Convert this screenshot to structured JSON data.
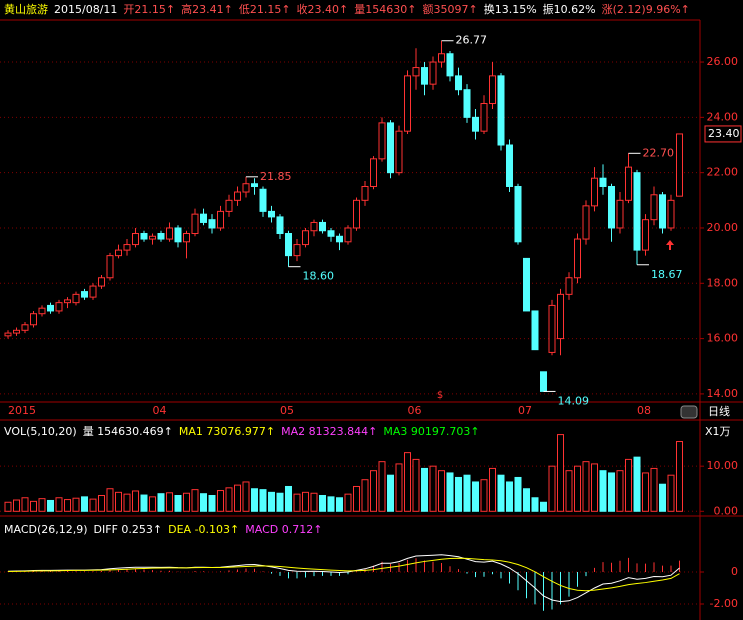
{
  "chart_data": {
    "type": "candlestick",
    "header": [
      {
        "text": "黄山旅游",
        "color": "#ffff00"
      },
      {
        "text": "2015/08/11",
        "color": "#ffffff"
      },
      {
        "text": "开21.15↑",
        "color": "#ff5050"
      },
      {
        "text": "高23.41↑",
        "color": "#ff5050"
      },
      {
        "text": "低21.15↑",
        "color": "#ff5050"
      },
      {
        "text": "收23.40↑",
        "color": "#ff5050"
      },
      {
        "text": "量154630↑",
        "color": "#ff5050"
      },
      {
        "text": "额35097↑",
        "color": "#ff5050"
      },
      {
        "text": "换13.15%",
        "color": "#ffffff"
      },
      {
        "text": "振10.62%",
        "color": "#ffffff"
      },
      {
        "text": "涨(2.12)9.96%↑",
        "color": "#ff5050"
      }
    ],
    "categories": [
      "2015",
      null,
      null,
      null,
      null,
      null,
      null,
      null,
      null,
      null,
      null,
      null,
      null,
      null,
      null,
      null,
      null,
      "04",
      null,
      null,
      null,
      null,
      null,
      null,
      null,
      null,
      null,
      null,
      null,
      null,
      null,
      null,
      "05",
      null,
      null,
      null,
      null,
      null,
      null,
      null,
      null,
      null,
      null,
      null,
      null,
      null,
      null,
      "06",
      null,
      null,
      null,
      null,
      null,
      null,
      null,
      null,
      null,
      null,
      null,
      null,
      "07",
      null,
      null,
      null,
      null,
      null,
      null,
      null,
      null,
      null,
      null,
      null,
      null,
      null,
      "08",
      null,
      null,
      null,
      null,
      null
    ],
    "ohlc": [
      [
        16.1,
        16.3,
        16.0,
        16.2
      ],
      [
        16.2,
        16.4,
        16.1,
        16.3
      ],
      [
        16.3,
        16.6,
        16.2,
        16.5
      ],
      [
        16.5,
        17.0,
        16.4,
        16.9
      ],
      [
        16.9,
        17.2,
        16.8,
        17.1
      ],
      [
        17.2,
        17.3,
        16.9,
        17.0
      ],
      [
        17.0,
        17.4,
        16.9,
        17.3
      ],
      [
        17.3,
        17.5,
        17.1,
        17.4
      ],
      [
        17.3,
        17.7,
        17.2,
        17.6
      ],
      [
        17.7,
        17.8,
        17.4,
        17.5
      ],
      [
        17.5,
        18.0,
        17.4,
        17.9
      ],
      [
        17.9,
        18.3,
        17.8,
        18.2
      ],
      [
        18.2,
        19.1,
        18.1,
        19.0
      ],
      [
        19.0,
        19.4,
        18.9,
        19.2
      ],
      [
        19.2,
        19.6,
        19.0,
        19.4
      ],
      [
        19.4,
        20.0,
        19.3,
        19.8
      ],
      [
        19.8,
        19.9,
        19.5,
        19.6
      ],
      [
        19.6,
        19.8,
        19.4,
        19.7
      ],
      [
        19.8,
        19.9,
        19.5,
        19.6
      ],
      [
        19.6,
        20.2,
        19.5,
        20.0
      ],
      [
        20.0,
        20.1,
        19.3,
        19.5
      ],
      [
        19.5,
        19.9,
        18.9,
        19.8
      ],
      [
        19.8,
        20.7,
        19.7,
        20.5
      ],
      [
        20.5,
        20.7,
        20.1,
        20.2
      ],
      [
        20.3,
        20.5,
        19.8,
        20.0
      ],
      [
        20.0,
        20.8,
        19.9,
        20.6
      ],
      [
        20.6,
        21.2,
        20.4,
        21.0
      ],
      [
        21.0,
        21.5,
        20.8,
        21.3
      ],
      [
        21.3,
        21.85,
        21.1,
        21.6
      ],
      [
        21.6,
        21.8,
        21.2,
        21.5
      ],
      [
        21.4,
        21.5,
        20.4,
        20.6
      ],
      [
        20.6,
        20.8,
        20.2,
        20.4
      ],
      [
        20.4,
        20.5,
        19.6,
        19.8
      ],
      [
        19.8,
        19.9,
        18.6,
        19.0
      ],
      [
        19.0,
        19.6,
        18.8,
        19.4
      ],
      [
        19.4,
        20.0,
        19.3,
        19.9
      ],
      [
        19.9,
        20.3,
        19.7,
        20.2
      ],
      [
        20.2,
        20.3,
        19.8,
        19.9
      ],
      [
        19.9,
        20.0,
        19.5,
        19.7
      ],
      [
        19.7,
        19.8,
        19.2,
        19.5
      ],
      [
        19.5,
        20.1,
        19.4,
        20.0
      ],
      [
        20.0,
        21.1,
        19.9,
        21.0
      ],
      [
        21.0,
        21.7,
        20.8,
        21.5
      ],
      [
        21.5,
        22.6,
        21.4,
        22.5
      ],
      [
        22.5,
        24.0,
        22.4,
        23.8
      ],
      [
        23.8,
        23.9,
        21.8,
        22.0
      ],
      [
        22.0,
        23.7,
        21.9,
        23.5
      ],
      [
        23.5,
        25.7,
        23.4,
        25.5
      ],
      [
        25.5,
        26.5,
        25.0,
        25.8
      ],
      [
        25.8,
        26.0,
        24.8,
        25.2
      ],
      [
        25.2,
        26.2,
        25.0,
        26.0
      ],
      [
        26.0,
        26.77,
        25.8,
        26.3
      ],
      [
        26.3,
        26.4,
        25.3,
        25.5
      ],
      [
        25.5,
        25.8,
        24.8,
        25.0
      ],
      [
        25.0,
        25.2,
        23.8,
        24.0
      ],
      [
        24.0,
        24.3,
        23.2,
        23.5
      ],
      [
        23.5,
        24.8,
        23.4,
        24.5
      ],
      [
        24.5,
        26.0,
        24.3,
        25.5
      ],
      [
        25.5,
        25.6,
        22.8,
        23.0
      ],
      [
        23.0,
        23.2,
        21.3,
        21.5
      ],
      [
        21.5,
        21.6,
        19.4,
        19.5
      ],
      [
        18.9,
        18.9,
        17.0,
        17.0
      ],
      [
        17.0,
        17.0,
        15.6,
        15.6
      ],
      [
        14.8,
        14.8,
        14.09,
        14.09
      ],
      [
        15.5,
        17.4,
        15.4,
        17.2
      ],
      [
        16.0,
        17.8,
        15.4,
        17.6
      ],
      [
        17.6,
        18.4,
        17.4,
        18.2
      ],
      [
        18.2,
        19.8,
        18.0,
        19.6
      ],
      [
        19.6,
        21.0,
        19.4,
        20.8
      ],
      [
        20.8,
        22.2,
        20.6,
        21.8
      ],
      [
        21.8,
        22.3,
        21.2,
        21.5
      ],
      [
        21.5,
        21.6,
        19.5,
        20.0
      ],
      [
        20.0,
        21.3,
        19.8,
        21.0
      ],
      [
        21.0,
        22.7,
        20.9,
        22.2
      ],
      [
        22.0,
        22.1,
        18.67,
        19.2
      ],
      [
        19.2,
        20.5,
        19.0,
        20.3
      ],
      [
        20.3,
        21.5,
        20.1,
        21.2
      ],
      [
        21.2,
        21.3,
        19.8,
        20.0
      ],
      [
        20.0,
        21.2,
        19.9,
        21.0
      ],
      [
        21.15,
        23.41,
        21.15,
        23.4
      ]
    ],
    "ylim": [
      13.78,
      27.52
    ],
    "yticks": [
      {
        "value": 14,
        "label": "14.00"
      },
      {
        "value": 16,
        "label": "16.00"
      },
      {
        "value": 18,
        "label": "18.00"
      },
      {
        "value": 20,
        "label": "20.00"
      },
      {
        "value": 22,
        "label": "22.00"
      },
      {
        "value": 24,
        "label": "24.00"
      },
      {
        "value": 26,
        "label": "26.00"
      }
    ],
    "annotations": [
      {
        "value": 26.77,
        "label": "26.77",
        "at": 51
      },
      {
        "value": 21.85,
        "label": "21.85",
        "at": 28
      },
      {
        "value": 18.6,
        "label": "18.60",
        "at": 33
      },
      {
        "value": 22.7,
        "label": "22.70",
        "at": 73
      },
      {
        "value": 18.67,
        "label": "18.67",
        "at": 74
      },
      {
        "value": 14.09,
        "label": "14.09",
        "at": 63
      }
    ],
    "last_price": {
      "value": 23.4,
      "label": "23.40"
    },
    "period": "日线",
    "up_color": "#ff3232",
    "down_color": "#54ffff",
    "grid": true,
    "volume": {
      "header": [
        {
          "text": "VOL(5,10,20)",
          "color": "#ffffff"
        },
        {
          "text": "量 154630.469↑",
          "color": "#ffffff"
        },
        {
          "text": "MA1 73076.977↑",
          "color": "#ffff00"
        },
        {
          "text": "MA2 81323.844↑",
          "color": "#ff40ff"
        },
        {
          "text": "MA3 90197.703↑",
          "color": "#00ff00"
        }
      ],
      "unit": "X1万",
      "values": [
        2.0,
        2.5,
        3.0,
        2.2,
        2.8,
        2.4,
        3.0,
        2.6,
        2.9,
        3.2,
        2.7,
        3.5,
        5.0,
        4.2,
        3.8,
        4.5,
        3.6,
        3.2,
        3.9,
        4.1,
        3.5,
        4.0,
        4.8,
        3.9,
        3.5,
        4.6,
        5.2,
        5.8,
        6.5,
        5.0,
        4.8,
        4.2,
        4.0,
        5.5,
        3.8,
        4.2,
        4.0,
        3.5,
        3.2,
        3.0,
        3.8,
        5.5,
        7.0,
        9.0,
        11.0,
        8.0,
        10.5,
        13.0,
        11.5,
        9.5,
        10.0,
        9.0,
        8.5,
        7.5,
        8.0,
        6.5,
        7.0,
        9.5,
        8.0,
        6.5,
        7.5,
        5.0,
        3.0,
        2.0,
        10.0,
        17.0,
        9.0,
        10.0,
        11.0,
        10.5,
        9.0,
        8.5,
        9.0,
        11.5,
        12.0,
        8.5,
        9.5,
        6.0,
        8.0,
        15.4630469
      ],
      "ylim": [
        -0.6,
        15.8
      ],
      "yticks": [
        {
          "value": 0,
          "label": "0.00"
        },
        {
          "value": 10,
          "label": "10.00"
        }
      ]
    },
    "macd": {
      "header": [
        {
          "text": "MACD(26,12,9)",
          "color": "#ffffff"
        },
        {
          "text": "DIFF 0.253↑",
          "color": "#ffffff"
        },
        {
          "text": "DEA -0.103↑",
          "color": "#ffff00"
        },
        {
          "text": "MACD 0.712↑",
          "color": "#ff40ff"
        }
      ],
      "diff_color": "#ffffff",
      "dea_color": "#ffff00",
      "diff": [
        0.05,
        0.06,
        0.07,
        0.09,
        0.1,
        0.1,
        0.11,
        0.12,
        0.12,
        0.12,
        0.13,
        0.15,
        0.2,
        0.24,
        0.27,
        0.3,
        0.3,
        0.3,
        0.29,
        0.3,
        0.27,
        0.26,
        0.3,
        0.3,
        0.28,
        0.3,
        0.35,
        0.4,
        0.45,
        0.47,
        0.4,
        0.32,
        0.22,
        0.1,
        0.05,
        0.04,
        0.05,
        0.03,
        0.0,
        -0.03,
        0.0,
        0.1,
        0.2,
        0.35,
        0.55,
        0.55,
        0.65,
        0.85,
        1.0,
        1.02,
        1.05,
        1.08,
        1.02,
        0.95,
        0.8,
        0.65,
        0.62,
        0.68,
        0.5,
        0.25,
        -0.1,
        -0.55,
        -1.0,
        -1.5,
        -1.75,
        -1.85,
        -1.8,
        -1.6,
        -1.3,
        -1.0,
        -0.75,
        -0.7,
        -0.55,
        -0.35,
        -0.45,
        -0.4,
        -0.28,
        -0.3,
        -0.2,
        0.253
      ],
      "dea": [
        0.03,
        0.04,
        0.05,
        0.06,
        0.07,
        0.07,
        0.08,
        0.09,
        0.1,
        0.1,
        0.11,
        0.12,
        0.13,
        0.15,
        0.17,
        0.2,
        0.22,
        0.24,
        0.25,
        0.26,
        0.26,
        0.26,
        0.27,
        0.28,
        0.28,
        0.28,
        0.3,
        0.32,
        0.34,
        0.37,
        0.38,
        0.37,
        0.34,
        0.3,
        0.25,
        0.21,
        0.18,
        0.15,
        0.12,
        0.09,
        0.07,
        0.08,
        0.1,
        0.15,
        0.23,
        0.3,
        0.37,
        0.47,
        0.57,
        0.66,
        0.73,
        0.8,
        0.84,
        0.86,
        0.85,
        0.81,
        0.77,
        0.75,
        0.7,
        0.61,
        0.47,
        0.27,
        0.01,
        -0.29,
        -0.58,
        -0.84,
        -1.03,
        -1.14,
        -1.17,
        -1.13,
        -1.06,
        -0.99,
        -0.9,
        -0.79,
        -0.72,
        -0.66,
        -0.58,
        -0.5,
        -0.4,
        -0.103
      ],
      "hist": [
        0.04,
        0.04,
        0.04,
        0.06,
        0.06,
        0.06,
        0.06,
        0.06,
        0.04,
        0.04,
        0.04,
        0.06,
        0.14,
        0.18,
        0.2,
        0.2,
        0.16,
        0.12,
        0.08,
        0.08,
        0.02,
        0.0,
        0.06,
        0.04,
        0.0,
        0.04,
        0.1,
        0.16,
        0.22,
        0.2,
        0.04,
        -0.1,
        -0.24,
        -0.4,
        -0.4,
        -0.34,
        -0.26,
        -0.24,
        -0.24,
        -0.24,
        -0.14,
        0.04,
        0.2,
        0.4,
        0.64,
        0.5,
        0.56,
        0.76,
        0.86,
        0.72,
        0.64,
        0.56,
        0.36,
        0.18,
        -0.1,
        -0.32,
        -0.3,
        -0.14,
        -0.4,
        -0.72,
        -1.14,
        -1.64,
        -2.02,
        -2.42,
        -2.34,
        -2.02,
        -1.54,
        -0.92,
        -0.26,
        0.26,
        0.62,
        0.58,
        0.7,
        0.88,
        0.54,
        0.52,
        0.6,
        0.4,
        0.4,
        0.712
      ],
      "ylim": [
        -3,
        3.25
      ],
      "yticks": [
        0,
        {
          "value": -2,
          "label": "-2.00"
        }
      ]
    }
  }
}
